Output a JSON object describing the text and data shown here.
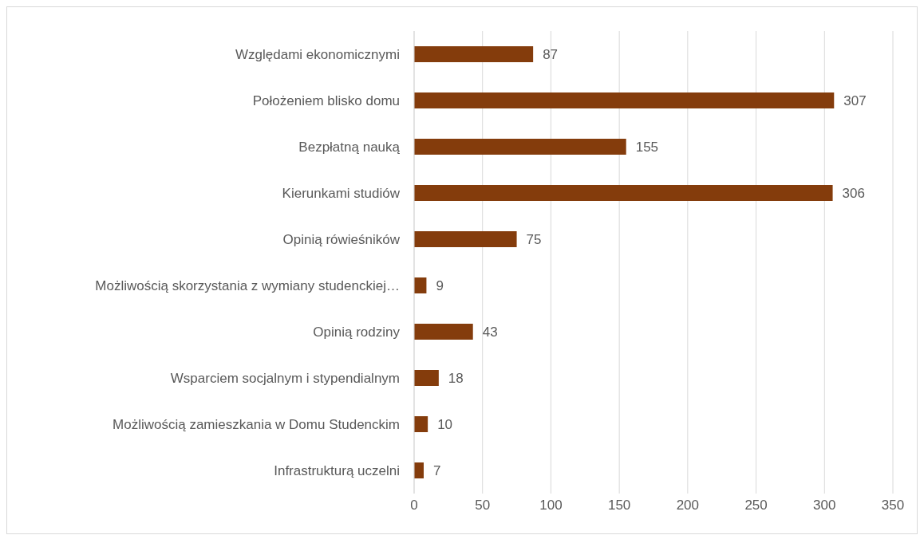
{
  "chart_data": {
    "type": "bar",
    "orientation": "horizontal",
    "categories": [
      "Względami ekonomicznymi",
      "Położeniem blisko domu",
      "Bezpłatną nauką",
      "Kierunkami studiów",
      "Opinią rówieśników",
      "Możliwością skorzystania z wymiany studenckiej…",
      "Opinią rodziny",
      "Wsparciem socjalnym i stypendialnym",
      "Możliwością zamieszkania w Domu Studenckim",
      "Infrastrukturą uczelni"
    ],
    "values": [
      87,
      307,
      155,
      306,
      75,
      9,
      43,
      18,
      10,
      7
    ],
    "color": "#843c0c",
    "xlim": [
      0,
      350
    ],
    "xticks": [
      0,
      50,
      100,
      150,
      200,
      250,
      300,
      350
    ],
    "grid": "x",
    "data_labels": true
  }
}
